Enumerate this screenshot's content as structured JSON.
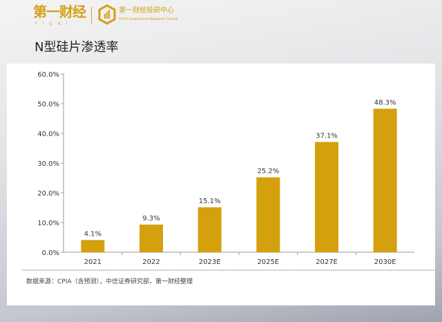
{
  "header": {
    "logo_text": "第一财经",
    "logo_sub": "YICAI",
    "center_name": "第一财经投研中心",
    "center_sub": "YICAI Investment Research Centre",
    "title": "N型硅片渗透率"
  },
  "source": "数据来源：CPIA（含预测），中信证券研究部，第一财经整理",
  "colors": {
    "bar": "#d4a00e",
    "brand": "#d4a017"
  },
  "chart_data": {
    "type": "bar",
    "title": "",
    "categories": [
      "2021",
      "2022",
      "2023E",
      "2025E",
      "2027E",
      "2030E"
    ],
    "values": [
      4.1,
      9.3,
      15.1,
      25.2,
      37.1,
      48.3
    ],
    "data_labels": [
      "4.1%",
      "9.3%",
      "15.1%",
      "25.2%",
      "37.1%",
      "48.3%"
    ],
    "yticks": [
      "0.0%",
      "10.0%",
      "20.0%",
      "30.0%",
      "40.0%",
      "50.0%",
      "60.0%"
    ],
    "ylim": [
      0,
      60
    ],
    "xlabel": "",
    "ylabel": "",
    "grid": false
  }
}
